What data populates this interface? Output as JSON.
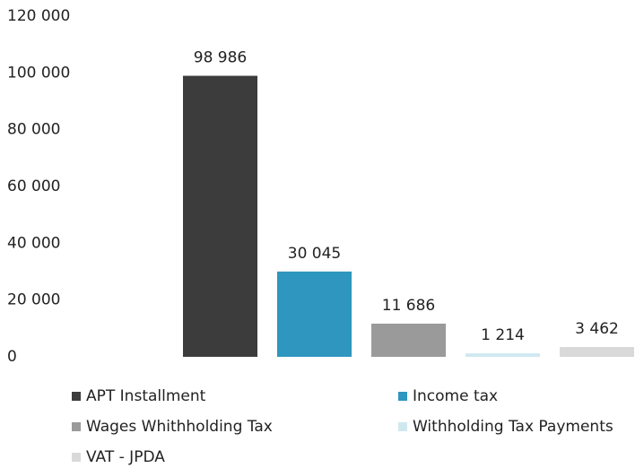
{
  "chart_data": {
    "type": "bar",
    "series": [
      {
        "name": "APT Installment",
        "color": "#3c3c3c",
        "values": [
          98986
        ],
        "value_labels": [
          "98 986"
        ]
      },
      {
        "name": "Income tax",
        "color": "#2e96bf",
        "values": [
          30045
        ],
        "value_labels": [
          "30 045"
        ]
      },
      {
        "name": "Wages Whithholding Tax",
        "color": "#9a9a9a",
        "values": [
          11686
        ],
        "value_labels": [
          "11 686"
        ]
      },
      {
        "name": "Withholding Tax Payments",
        "color": "#cfe8f0",
        "values": [
          1214
        ],
        "value_labels": [
          "1 214"
        ]
      },
      {
        "name": "VAT - JPDA",
        "color": "#d9d9d9",
        "values": [
          3462
        ],
        "value_labels": [
          "3 462"
        ]
      }
    ],
    "ylim": [
      0,
      120000
    ],
    "yticks": [
      0,
      {
        "value": 20000,
        "label": "20 000"
      },
      {
        "value": 40000,
        "label": "40 000"
      },
      {
        "value": 60000,
        "label": "60 000"
      },
      {
        "value": 80000,
        "label": "80 000"
      },
      {
        "value": 100000,
        "label": "100 000"
      },
      {
        "value": 120000,
        "label": "120 000"
      }
    ],
    "grid": false,
    "legend": "bottom"
  }
}
